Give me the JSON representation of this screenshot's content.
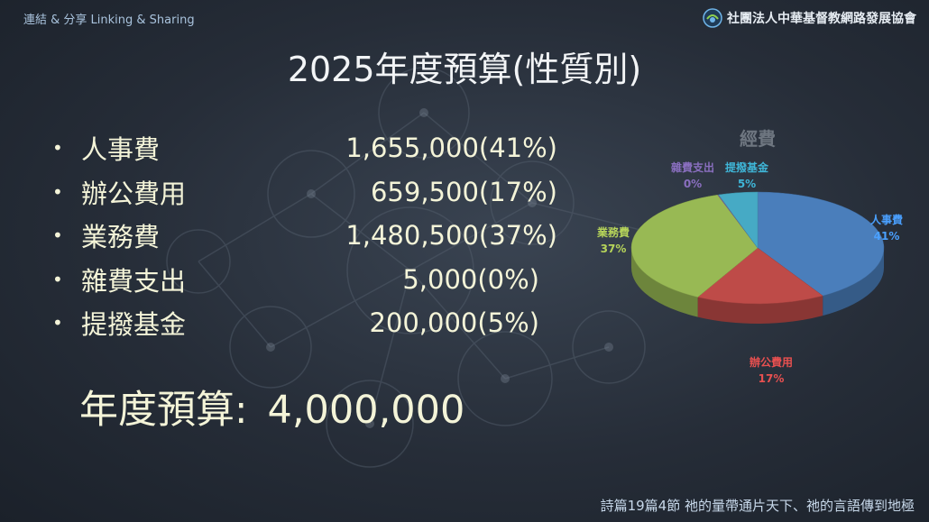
{
  "header": {
    "tagline": "連結 & 分享 Linking & Sharing",
    "organization": "社團法人中華基督教網路發展協會"
  },
  "title": "2025年度預算(性質別)",
  "items": [
    {
      "label": "人事費",
      "amount": "1,655,000(41%)"
    },
    {
      "label": "辦公費用",
      "amount": "659,500(17%)"
    },
    {
      "label": "業務費",
      "amount": "1,480,500(37%)"
    },
    {
      "label": "雜費支出",
      "amount": "5,000(0%)"
    },
    {
      "label": "提撥基金",
      "amount": "200,000(5%)"
    }
  ],
  "bullet": "•",
  "total": {
    "label": "年度預算:",
    "value": "4,000,000"
  },
  "footer": "詩篇19篇4節  祂的量帶通片天下、祂的言語傳到地極",
  "chart_data": {
    "type": "pie",
    "title": "經費",
    "series": [
      {
        "label": "人事費",
        "pct_label": "41%",
        "value": 1655000,
        "color": "#4a7ebb"
      },
      {
        "label": "辦公費用",
        "pct_label": "17%",
        "value": 659500,
        "color": "#be4b48"
      },
      {
        "label": "業務費",
        "pct_label": "37%",
        "value": 1480500,
        "color": "#98b954"
      },
      {
        "label": "雜費支出",
        "pct_label": "0%",
        "value": 5000,
        "color": "#7d60a0"
      },
      {
        "label": "提撥基金",
        "pct_label": "5%",
        "value": 200000,
        "color": "#46aac5"
      }
    ],
    "label_colors": [
      "#4aa0ff",
      "#e85050",
      "#b6d45a",
      "#8a6fc0",
      "#3fb6d8"
    ]
  }
}
